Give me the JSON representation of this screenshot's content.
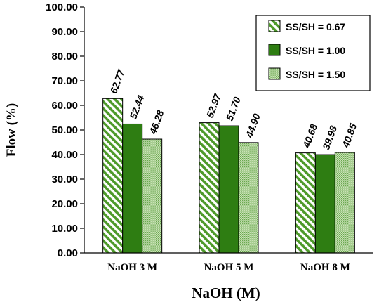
{
  "colors": {
    "dark_green": "#2e7d12",
    "stripe_green": "#4e9a2a",
    "light_green": "#c9e2b6",
    "dot_green": "#6aa84f",
    "border": "#000000"
  },
  "chart_data": {
    "type": "bar",
    "title": "",
    "xlabel": "NaOH (M)",
    "ylabel": "Flow (%)",
    "ylim": [
      0,
      100
    ],
    "yticks": [
      "0.00",
      "10.00",
      "20.00",
      "30.00",
      "40.00",
      "50.00",
      "60.00",
      "70.00",
      "80.00",
      "90.00",
      "100.00"
    ],
    "categories": [
      "NaOH 3 M",
      "NaOH 5 M",
      "NaOH 8 M"
    ],
    "series": [
      {
        "name": "SS/SH = 0.67",
        "values": [
          62.77,
          52.97,
          40.68
        ],
        "labels": [
          "62.77",
          "52.97",
          "40.68"
        ],
        "pattern": "diagonal-stripes"
      },
      {
        "name": "SS/SH = 1.00",
        "values": [
          52.44,
          51.7,
          39.98
        ],
        "labels": [
          "52.44",
          "51.70",
          "39.98"
        ],
        "pattern": "solid"
      },
      {
        "name": "SS/SH = 1.50",
        "values": [
          46.28,
          44.9,
          40.85
        ],
        "labels": [
          "46.28",
          "44.90",
          "40.85"
        ],
        "pattern": "dotted"
      }
    ],
    "grid": false,
    "legend_position": "top-right"
  }
}
